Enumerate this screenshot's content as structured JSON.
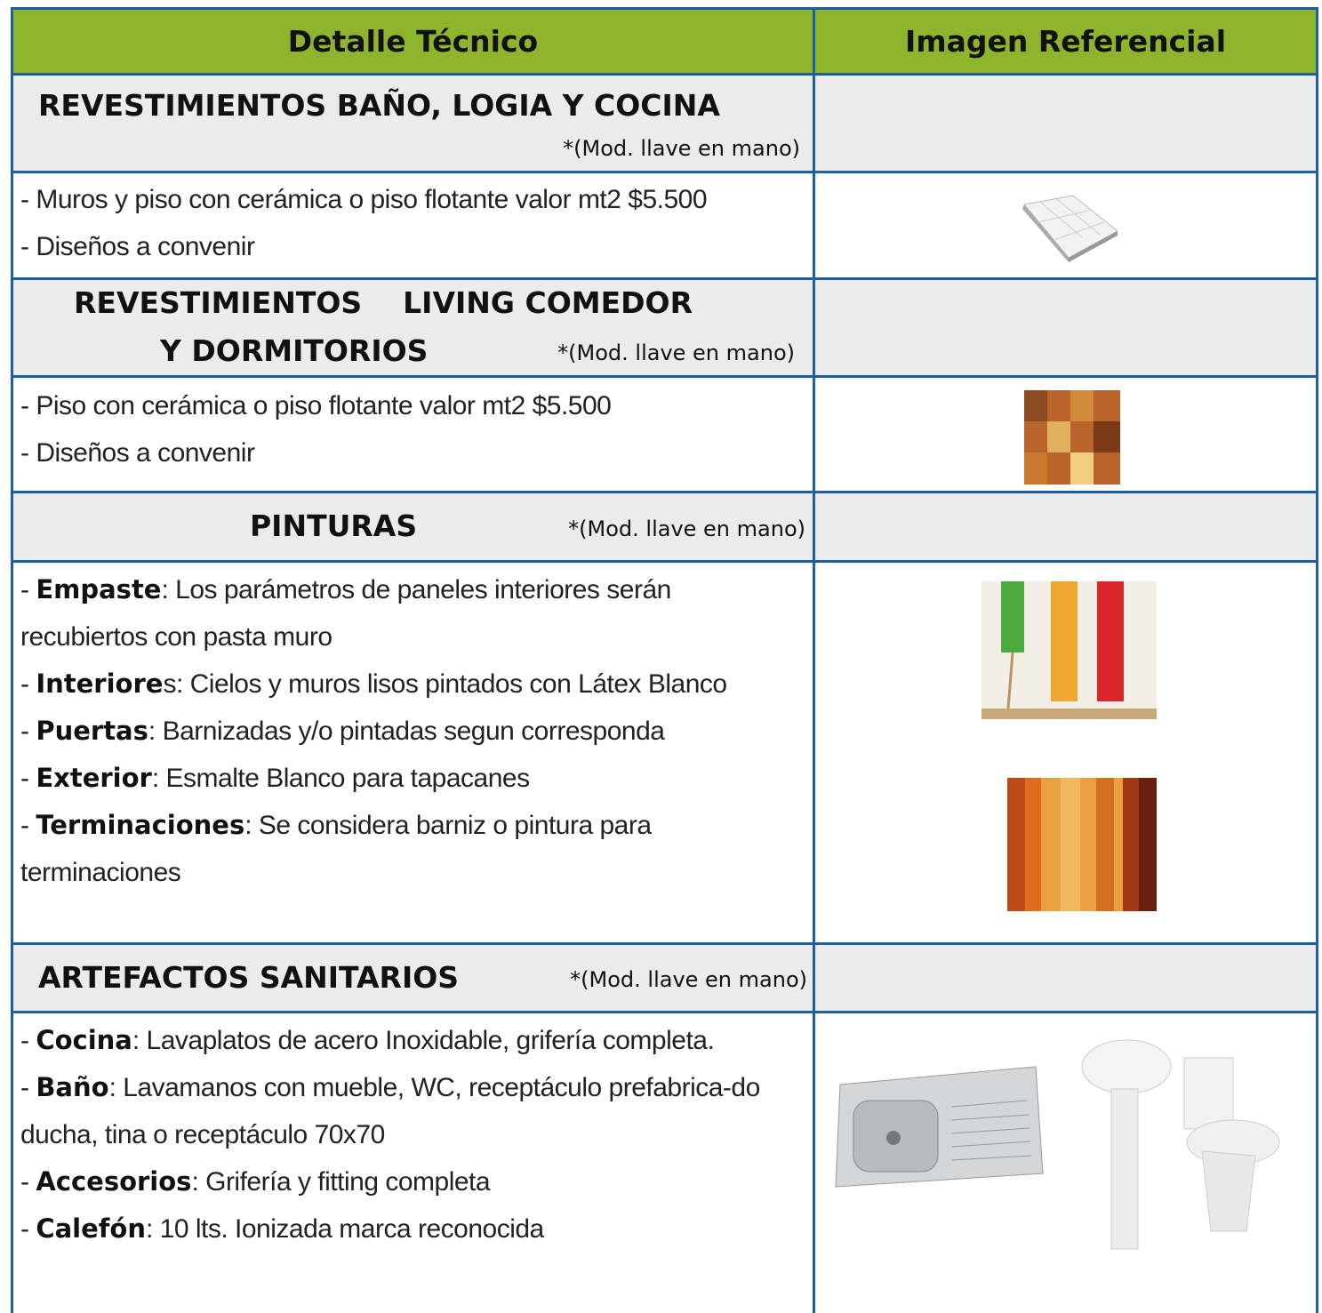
{
  "header": {
    "col1": "Detalle Técnico",
    "col2": "Imagen Referencial"
  },
  "sections": [
    {
      "title": [
        "REVESTIMIENTOS BAÑO, LOGIA Y COCINA"
      ],
      "note": "*(Mod. llave en mano)",
      "items": [
        {
          "lead": "- Muros y piso con cerámica o piso flotante valor mt2 $5.500"
        },
        {
          "lead": "- Diseños a convenir"
        }
      ]
    },
    {
      "title": [
        "REVESTIMIENTOS    LIVING COMEDOR",
        "Y DORMITORIOS"
      ],
      "note": "*(Mod. llave en mano)",
      "items": [
        {
          "lead": "- Piso con cerámica o piso flotante valor mt2 $5.500"
        },
        {
          "lead": "- Diseños a convenir"
        }
      ]
    },
    {
      "title": [
        "PINTURAS"
      ],
      "note": "*(Mod. llave en mano)",
      "items": [
        {
          "lead": "- ",
          "term": "Empaste",
          "rest": ": Los parámetros de paneles interiores serán recubiertos con pasta muro"
        },
        {
          "lead": "- ",
          "term": "Interiore",
          "rest": "s: Cielos y muros lisos pintados con Látex Blanco"
        },
        {
          "lead": "- ",
          "term": "Puertas",
          "rest": ": Barnizadas y/o pintadas segun corresponda"
        },
        {
          "lead": "- ",
          "term": "Exterior",
          "rest": ": Esmalte Blanco para tapacanes"
        },
        {
          "lead": "- ",
          "term": "Terminaciones",
          "rest": ": Se considera barniz o pintura para terminaciones"
        }
      ]
    },
    {
      "title": [
        "ARTEFACTOS SANITARIOS"
      ],
      "note": "*(Mod. llave en mano)",
      "items": [
        {
          "lead": "- ",
          "term": "Cocina",
          "rest": ": Lavaplatos de acero Inoxidable, grifería completa."
        },
        {
          "lead": "- ",
          "term": "Baño",
          "rest": ": Lavamanos con mueble, WC, receptáculo prefabrica-do ducha, tina o receptáculo 70x70"
        },
        {
          "lead": "- ",
          "term": "Accesorios",
          "rest": ": Grifería y fitting completa"
        },
        {
          "lead": "- ",
          "term": "Calefón",
          "rest": ": 10 lts. Ionizada marca reconocida"
        }
      ]
    }
  ]
}
